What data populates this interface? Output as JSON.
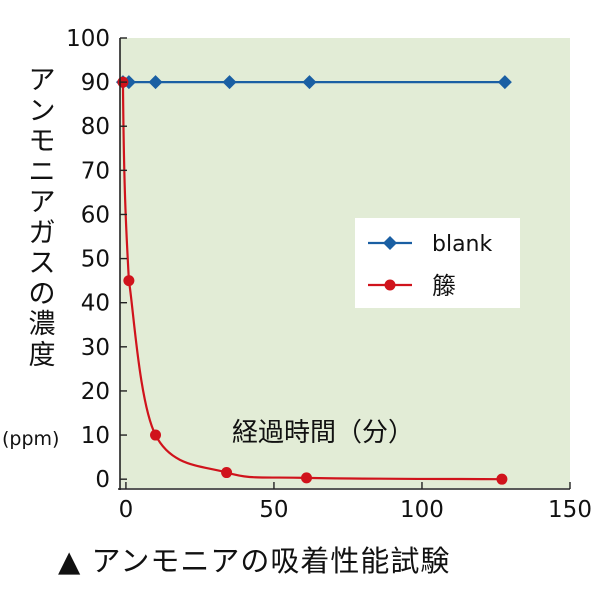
{
  "chart_data": {
    "type": "line",
    "xlabel": "経過時間（分）",
    "ylabel": "アンモニアガスの濃度",
    "ylabel_unit": "(ppm)",
    "xlim": [
      -2,
      150
    ],
    "ylim": [
      -2,
      100
    ],
    "x_ticks": [
      0,
      50,
      100,
      150
    ],
    "y_ticks": [
      0,
      10,
      20,
      30,
      40,
      50,
      60,
      70,
      80,
      90,
      100
    ],
    "grid": false,
    "legend_position": "right",
    "plot_background": "#e2ecd6",
    "series": [
      {
        "name": "blank",
        "color": "#1a5fa3",
        "marker": "diamond",
        "x": [
          -1,
          1,
          10,
          35,
          62,
          128
        ],
        "y": [
          90,
          90,
          90,
          90,
          90,
          90
        ]
      },
      {
        "name": "籐",
        "color": "#d0131c",
        "marker": "circle",
        "x": [
          -1,
          1,
          10,
          34,
          61,
          127
        ],
        "y": [
          90,
          45,
          10,
          1.5,
          0.3,
          0
        ]
      }
    ]
  },
  "caption": "▲ アンモニアの吸着性能試験"
}
